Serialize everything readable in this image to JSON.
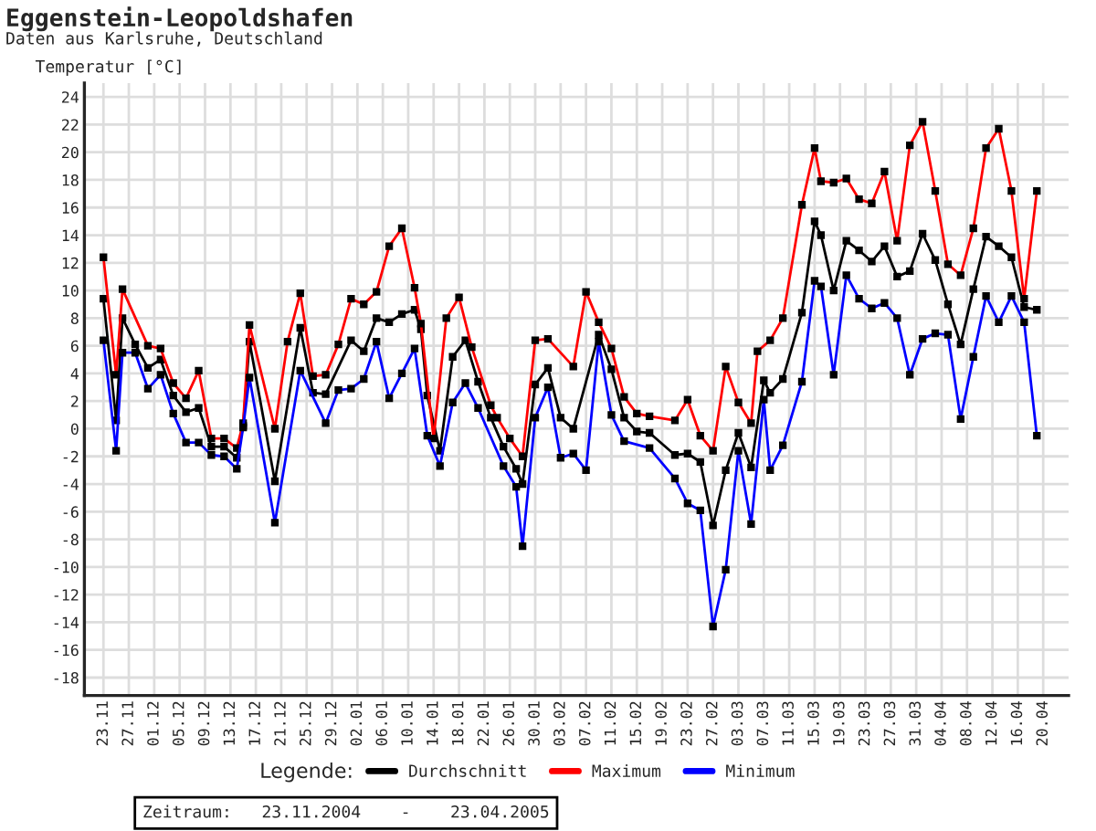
{
  "chart_data": {
    "type": "line",
    "title": "Eggenstein-Leopoldshafen",
    "subtitle": "Daten aus Karlsruhe, Deutschland",
    "ylabel": "Temperatur [°C]",
    "legend_title": "Legende:",
    "legend": "bottom",
    "grid": true,
    "marker": "square",
    "line_style": "solid",
    "annotations": [
      "Zeitraum:   23.11.2004    -    23.04.2005"
    ],
    "xlim": [
      "2004-11-20",
      "2005-04-24"
    ],
    "ylim": [
      -19.3,
      25
    ],
    "yticks": [
      -18,
      -16,
      -14,
      -12,
      -10,
      -8,
      -6,
      -4,
      -2,
      0,
      2,
      4,
      6,
      8,
      10,
      12,
      14,
      16,
      18,
      20,
      22,
      24
    ],
    "xticks": [
      {
        "value": "2004-11-23",
        "label": "23.11"
      },
      {
        "value": "2004-11-27",
        "label": "27.11"
      },
      {
        "value": "2004-12-01",
        "label": "01.12"
      },
      {
        "value": "2004-12-05",
        "label": "05.12"
      },
      {
        "value": "2004-12-09",
        "label": "09.12"
      },
      {
        "value": "2004-12-13",
        "label": "13.12"
      },
      {
        "value": "2004-12-17",
        "label": "17.12"
      },
      {
        "value": "2004-12-21",
        "label": "21.12"
      },
      {
        "value": "2004-12-25",
        "label": "25.12"
      },
      {
        "value": "2004-12-29",
        "label": "29.12"
      },
      {
        "value": "2005-01-02",
        "label": "02.01"
      },
      {
        "value": "2005-01-06",
        "label": "06.01"
      },
      {
        "value": "2005-01-10",
        "label": "10.01"
      },
      {
        "value": "2005-01-14",
        "label": "14.01"
      },
      {
        "value": "2005-01-18",
        "label": "18.01"
      },
      {
        "value": "2005-01-22",
        "label": "22.01"
      },
      {
        "value": "2005-01-26",
        "label": "26.01"
      },
      {
        "value": "2005-01-30",
        "label": "30.01"
      },
      {
        "value": "2005-02-03",
        "label": "03.02"
      },
      {
        "value": "2005-02-07",
        "label": "07.02"
      },
      {
        "value": "2005-02-11",
        "label": "11.02"
      },
      {
        "value": "2005-02-15",
        "label": "15.02"
      },
      {
        "value": "2005-02-19",
        "label": "19.02"
      },
      {
        "value": "2005-02-23",
        "label": "23.02"
      },
      {
        "value": "2005-02-27",
        "label": "27.02"
      },
      {
        "value": "2005-03-03",
        "label": "03.03"
      },
      {
        "value": "2005-03-07",
        "label": "07.03"
      },
      {
        "value": "2005-03-11",
        "label": "11.03"
      },
      {
        "value": "2005-03-15",
        "label": "15.03"
      },
      {
        "value": "2005-03-19",
        "label": "19.03"
      },
      {
        "value": "2005-03-23",
        "label": "23.03"
      },
      {
        "value": "2005-03-27",
        "label": "27.03"
      },
      {
        "value": "2005-03-31",
        "label": "31.03"
      },
      {
        "value": "2005-04-04",
        "label": "04.04"
      },
      {
        "value": "2005-04-08",
        "label": "08.04"
      },
      {
        "value": "2005-04-12",
        "label": "12.04"
      },
      {
        "value": "2005-04-16",
        "label": "16.04"
      },
      {
        "value": "2005-04-20",
        "label": "20.04"
      }
    ],
    "series": [
      {
        "name": "Durchschnitt",
        "color": "#000000",
        "x": [
          "2004-11-23",
          "2004-11-25",
          "2004-11-26",
          "2004-11-28",
          "2004-11-30",
          "2004-12-02",
          "2004-12-04",
          "2004-12-06",
          "2004-12-08",
          "2004-12-10",
          "2004-12-12",
          "2004-12-14",
          "2004-12-15",
          "2004-12-16",
          "2004-12-20",
          "2004-12-24",
          "2004-12-26",
          "2004-12-28",
          "2005-01-01",
          "2005-01-03",
          "2005-01-05",
          "2005-01-07",
          "2005-01-09",
          "2005-01-11",
          "2005-01-12",
          "2005-01-13",
          "2005-01-15",
          "2005-01-17",
          "2005-01-19",
          "2005-01-21",
          "2005-01-23",
          "2005-01-25",
          "2005-01-27",
          "2005-01-28",
          "2005-01-30",
          "2005-02-01",
          "2005-02-03",
          "2005-02-05",
          "2005-02-09",
          "2005-02-11",
          "2005-02-13",
          "2005-02-15",
          "2005-02-17",
          "2005-02-21",
          "2005-02-23",
          "2005-02-25",
          "2005-02-27",
          "2005-03-01",
          "2005-03-03",
          "2005-03-05",
          "2005-03-07",
          "2005-03-08",
          "2005-03-10",
          "2005-03-13",
          "2005-03-15",
          "2005-03-16",
          "2005-03-18",
          "2005-03-20",
          "2005-03-22",
          "2005-03-24",
          "2005-03-26",
          "2005-03-28",
          "2005-03-30",
          "2005-04-01",
          "2005-04-03",
          "2005-04-05",
          "2005-04-07",
          "2005-04-09",
          "2005-04-11",
          "2005-04-13",
          "2005-04-15",
          "2005-04-17",
          "2005-04-19"
        ],
        "values": [
          9.4,
          0.6,
          8.0,
          6.1,
          4.4,
          5.0,
          2.4,
          1.2,
          1.5,
          -1.3,
          -1.3,
          -2.1,
          0.2,
          6.3,
          -3.8,
          7.3,
          2.6,
          2.5,
          6.4,
          5.6,
          8.0,
          7.7,
          8.3,
          8.6,
          7.2,
          2.4,
          -1.6,
          5.2,
          6.4,
          3.4,
          0.8,
          -1.3,
          -2.9,
          -4.0,
          3.2,
          4.4,
          0.8,
          0.0,
          6.8,
          4.3,
          0.8,
          -0.2,
          -0.3,
          -1.9,
          -1.8,
          -2.4,
          -7.0,
          -3.0,
          -0.3,
          -2.8,
          3.5,
          2.6,
          3.6,
          8.4,
          15.0,
          14.0,
          10.0,
          13.6,
          12.9,
          12.1,
          13.2,
          11.0,
          11.4,
          14.1,
          12.2,
          9.0,
          6.1,
          10.1,
          13.9,
          13.2,
          12.4,
          8.8,
          8.6
        ]
      },
      {
        "name": "Maximum",
        "color": "#ff0000",
        "x": [
          "2004-11-23",
          "2004-11-25",
          "2004-11-26",
          "2004-11-30",
          "2004-12-02",
          "2004-12-04",
          "2004-12-06",
          "2004-12-08",
          "2004-12-10",
          "2004-12-12",
          "2004-12-14",
          "2004-12-15",
          "2004-12-16",
          "2004-12-20",
          "2004-12-22",
          "2004-12-24",
          "2004-12-26",
          "2004-12-28",
          "2004-12-30",
          "2005-01-01",
          "2005-01-03",
          "2005-01-05",
          "2005-01-07",
          "2005-01-09",
          "2005-01-11",
          "2005-01-12",
          "2005-01-14",
          "2005-01-16",
          "2005-01-18",
          "2005-01-20",
          "2005-01-23",
          "2005-01-24",
          "2005-01-26",
          "2005-01-28",
          "2005-01-30",
          "2005-02-01",
          "2005-02-05",
          "2005-02-07",
          "2005-02-09",
          "2005-02-11",
          "2005-02-13",
          "2005-02-15",
          "2005-02-17",
          "2005-02-21",
          "2005-02-23",
          "2005-02-25",
          "2005-02-27",
          "2005-03-01",
          "2005-03-03",
          "2005-03-05",
          "2005-03-06",
          "2005-03-08",
          "2005-03-10",
          "2005-03-13",
          "2005-03-15",
          "2005-03-16",
          "2005-03-18",
          "2005-03-20",
          "2005-03-22",
          "2005-03-24",
          "2005-03-26",
          "2005-03-28",
          "2005-03-30",
          "2005-04-01",
          "2005-04-03",
          "2005-04-05",
          "2005-04-07",
          "2005-04-09",
          "2005-04-11",
          "2005-04-13",
          "2005-04-15",
          "2005-04-17",
          "2005-04-19"
        ],
        "values": [
          12.4,
          3.9,
          10.1,
          6.0,
          5.8,
          3.3,
          2.2,
          4.2,
          -0.7,
          -0.7,
          -1.4,
          0.4,
          7.5,
          0.0,
          6.3,
          9.8,
          3.8,
          3.9,
          6.1,
          9.4,
          9.0,
          9.9,
          13.2,
          14.5,
          10.2,
          7.6,
          -0.7,
          8.0,
          9.5,
          5.9,
          1.7,
          0.8,
          -0.7,
          -2.0,
          6.4,
          6.5,
          4.5,
          9.9,
          7.7,
          5.8,
          2.3,
          1.1,
          0.9,
          0.6,
          2.1,
          -0.5,
          -1.6,
          4.5,
          1.9,
          0.4,
          5.6,
          6.4,
          8.0,
          16.2,
          20.3,
          17.9,
          17.8,
          18.1,
          16.6,
          16.3,
          18.6,
          13.6,
          20.5,
          22.2,
          17.2,
          11.9,
          11.1,
          14.5,
          20.3,
          21.7,
          17.2,
          9.4,
          17.2
        ]
      },
      {
        "name": "Minimum",
        "color": "#0000ff",
        "x": [
          "2004-11-23",
          "2004-11-25",
          "2004-11-26",
          "2004-11-28",
          "2004-11-30",
          "2004-12-02",
          "2004-12-04",
          "2004-12-06",
          "2004-12-08",
          "2004-12-10",
          "2004-12-12",
          "2004-12-14",
          "2004-12-15",
          "2004-12-16",
          "2004-12-20",
          "2004-12-24",
          "2004-12-28",
          "2004-12-30",
          "2005-01-01",
          "2005-01-03",
          "2005-01-05",
          "2005-01-07",
          "2005-01-09",
          "2005-01-11",
          "2005-01-13",
          "2005-01-15",
          "2005-01-17",
          "2005-01-19",
          "2005-01-21",
          "2005-01-25",
          "2005-01-27",
          "2005-01-28",
          "2005-01-30",
          "2005-02-01",
          "2005-02-03",
          "2005-02-05",
          "2005-02-07",
          "2005-02-09",
          "2005-02-11",
          "2005-02-13",
          "2005-02-17",
          "2005-02-21",
          "2005-02-23",
          "2005-02-25",
          "2005-02-27",
          "2005-03-01",
          "2005-03-03",
          "2005-03-05",
          "2005-03-07",
          "2005-03-08",
          "2005-03-10",
          "2005-03-13",
          "2005-03-15",
          "2005-03-16",
          "2005-03-18",
          "2005-03-20",
          "2005-03-22",
          "2005-03-24",
          "2005-03-26",
          "2005-03-28",
          "2005-03-30",
          "2005-04-01",
          "2005-04-03",
          "2005-04-05",
          "2005-04-07",
          "2005-04-09",
          "2005-04-11",
          "2005-04-13",
          "2005-04-15",
          "2005-04-17",
          "2005-04-19"
        ],
        "values": [
          6.4,
          -1.6,
          5.5,
          5.5,
          2.9,
          3.9,
          1.1,
          -1.0,
          -1.0,
          -1.9,
          -2.0,
          -2.9,
          0.1,
          3.7,
          -6.8,
          4.2,
          0.4,
          2.8,
          2.9,
          3.6,
          6.3,
          2.2,
          4.0,
          5.8,
          -0.5,
          -2.7,
          1.9,
          3.3,
          1.5,
          -2.7,
          -4.2,
          -8.5,
          0.8,
          3.0,
          -2.1,
          -1.8,
          -3.0,
          6.3,
          1.0,
          -0.9,
          -1.4,
          -3.6,
          -5.4,
          -5.9,
          -14.3,
          -10.2,
          -1.6,
          -6.9,
          2.1,
          -3.0,
          -1.2,
          3.4,
          10.7,
          10.3,
          3.9,
          11.1,
          9.4,
          8.7,
          9.1,
          8.0,
          3.9,
          6.5,
          6.9,
          6.8,
          0.7,
          5.2,
          9.6,
          7.7,
          9.6,
          7.7,
          -0.5
        ]
      }
    ]
  }
}
